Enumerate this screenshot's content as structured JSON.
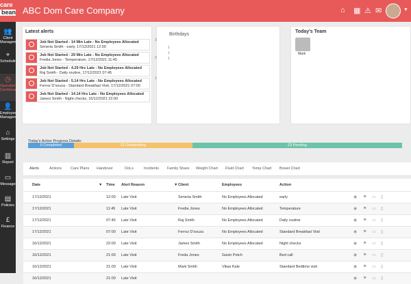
{
  "app": {
    "logo_line1": "care",
    "logo_line2": "beans",
    "company": "ABC Dom Care Company"
  },
  "sidebar": [
    {
      "label": "Client",
      "label2": "Management",
      "icon": "group-icon"
    },
    {
      "label": "Scheduling",
      "label2": "",
      "icon": "map-pin-icon"
    },
    {
      "label": "Operations",
      "label2": "Dashboard",
      "icon": "dashboard-icon",
      "active": true
    },
    {
      "label": "Employees",
      "label2": "Management",
      "icon": "employees-icon"
    },
    {
      "label": "Settings",
      "label2": "",
      "icon": "home-icon"
    },
    {
      "label": "Report",
      "label2": "",
      "icon": "chart-icon"
    },
    {
      "label": "Message",
      "label2": "",
      "icon": "chat-icon"
    },
    {
      "label": "Policies",
      "label2": "",
      "icon": "document-icon"
    },
    {
      "label": "Finance",
      "label2": "",
      "icon": "pound-icon"
    }
  ],
  "alerts_panel": {
    "title": "Latest alerts",
    "items": [
      {
        "title": "Job Not Started - 14 Min Late - No Employees Allocated",
        "detail": "Seneria Smith - early, 17/12/2021 12:00"
      },
      {
        "title": "Job Not Started - 29 Min Late - No Employees Allocated",
        "detail": "Fredia Jones - Temperature, 17/12/2021 11:45"
      },
      {
        "title": "Job Not Started - 4.29 Hrs Late - No Employees Allocated",
        "detail": "Raj Smith - Daily routine, 17/12/2021 07:45"
      },
      {
        "title": "Job Not Started - 5.14 Hrs Late - No Employees Allocated",
        "detail": "Ferroz D'souza - Standard Breakfast Visit, 17/12/2021 07:00"
      },
      {
        "title": "Job Not Started - 14.14 Hrs Late - No Employees Allocated",
        "detail": "James Smith - Night checks, 16/12/2021 22:00"
      }
    ]
  },
  "birthdays_panel": {
    "title": "Birthdays",
    "axis": [
      "1",
      "1",
      "1"
    ]
  },
  "team_panel": {
    "title": "Today's Team",
    "member": "Mark"
  },
  "progress": {
    "label": "Today's Action Progress Details:",
    "segments": [
      {
        "text": "5 Completed",
        "value": 5,
        "color": "#5aa0d8"
      },
      {
        "text": "13 Outstanding",
        "value": 13,
        "color": "#f5c26b"
      },
      {
        "text": "23 Pending",
        "value": 23,
        "color": "#6cc3a9"
      }
    ]
  },
  "tabs": [
    "Alerts",
    "Actions",
    "Care Plans",
    "Handover",
    "DoLs",
    "Incidents",
    "Family Share",
    "Weight Chart",
    "Fluid Chart",
    "Temp Chart",
    "Bowel Chart"
  ],
  "table": {
    "headers": {
      "date": "Date",
      "time": "Time",
      "reason": "Alert Reason",
      "client": "Client",
      "employees": "Employees",
      "action": "Action"
    },
    "rows": [
      {
        "date": "17/12/2021",
        "time": "12:00",
        "reason": "Late Visit",
        "client": "Seneria Smith",
        "employees": "No Employees Allocated",
        "action": "early"
      },
      {
        "date": "17/12/2021",
        "time": "11:45",
        "reason": "Late Visit",
        "client": "Fredia Jones",
        "employees": "No Employees Allocated",
        "action": "Temperature"
      },
      {
        "date": "17/12/2021",
        "time": "07:45",
        "reason": "Late Visit",
        "client": "Raj Smith",
        "employees": "No Employees Allocated",
        "action": "Daily routine"
      },
      {
        "date": "17/12/2021",
        "time": "07:00",
        "reason": "Late Visit",
        "client": "Ferroz D'souza",
        "employees": "No Employees Allocated",
        "action": "Standard Breakfast Visit"
      },
      {
        "date": "16/12/2021",
        "time": "22:00",
        "reason": "Late Visit",
        "client": "James Smith",
        "employees": "No Employees Allocated",
        "action": "Night checks"
      },
      {
        "date": "16/12/2021",
        "time": "21:00",
        "reason": "Late Visit",
        "client": "Freda Jones",
        "employees": "Gavin Petch",
        "action": "Bed call"
      },
      {
        "date": "16/12/2021",
        "time": "21:00",
        "reason": "Late Visit",
        "client": "Mark Smith",
        "employees": "Vikas Kale",
        "action": "Standard Bedtime visit"
      },
      {
        "date": "16/12/2021",
        "time": "21:00",
        "reason": "Late Visit",
        "client": "",
        "employees": "",
        "action": ""
      }
    ]
  }
}
